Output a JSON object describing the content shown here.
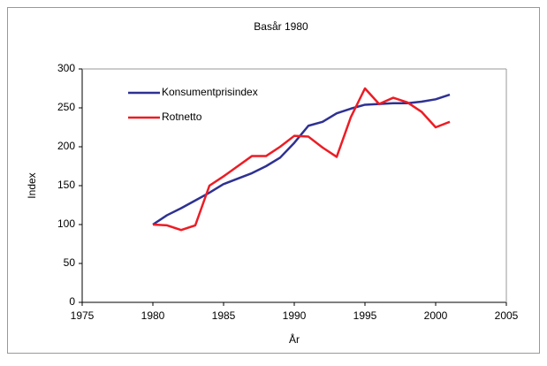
{
  "chart_data": {
    "type": "line",
    "title": "Basår 1980",
    "xlabel": "År",
    "ylabel": "Index",
    "x": [
      1980,
      1981,
      1982,
      1983,
      1984,
      1985,
      1986,
      1987,
      1988,
      1989,
      1990,
      1991,
      1992,
      1993,
      1994,
      1995,
      1996,
      1997,
      1998,
      1999,
      2000,
      2001
    ],
    "series": [
      {
        "name": "Konsumentprisindex",
        "color": "#2e3192",
        "values": [
          100,
          112,
          121,
          131,
          141,
          152,
          159,
          166,
          175,
          186,
          205,
          227,
          232,
          243,
          249,
          254,
          255,
          256,
          256,
          258,
          261,
          267
        ]
      },
      {
        "name": "Rotnetto",
        "color": "#ed1c24",
        "values": [
          100,
          99,
          93,
          99,
          150,
          162,
          175,
          188,
          188,
          200,
          214,
          213,
          199,
          187,
          238,
          275,
          255,
          263,
          257,
          245,
          225,
          232
        ]
      }
    ],
    "xlim": [
      1975,
      2005
    ],
    "xticks": [
      1975,
      1980,
      1985,
      1990,
      1995,
      2000,
      2005
    ],
    "ylim": [
      0,
      300
    ],
    "yticks": [
      0,
      50,
      100,
      150,
      200,
      250,
      300
    ],
    "grid": false,
    "legend": "upper left"
  }
}
